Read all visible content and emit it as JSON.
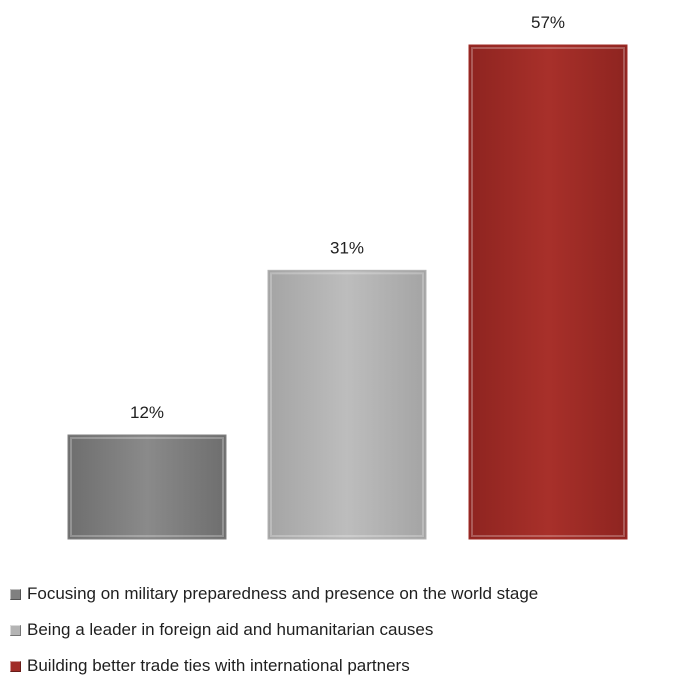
{
  "chart_data": {
    "type": "bar",
    "categories": [
      "Focusing on military preparedness and presence on the world stage",
      "Being a leader in foreign aid and humanitarian causes",
      "Building better trade ties with international partners"
    ],
    "values": [
      12,
      31,
      57
    ],
    "data_labels": [
      "12%",
      "31%",
      "57%"
    ],
    "colors": [
      "#808080",
      "#b4b4b4",
      "#a02c27"
    ],
    "ylim": [
      0,
      57
    ],
    "grid": false,
    "legend_position": "bottom",
    "title": "",
    "xlabel": "",
    "ylabel": ""
  }
}
